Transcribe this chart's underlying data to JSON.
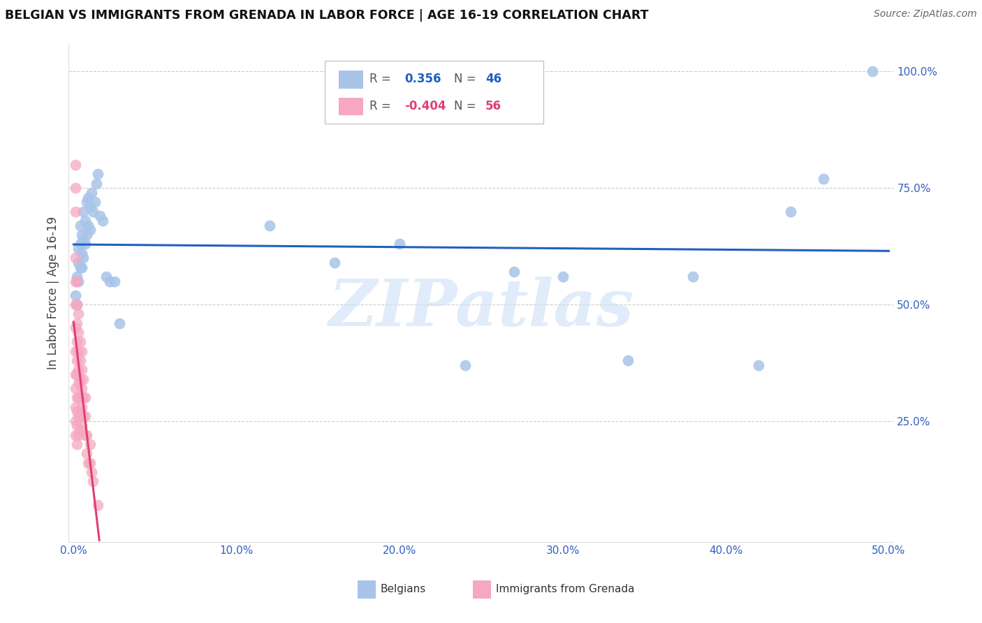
{
  "title": "BELGIAN VS IMMIGRANTS FROM GRENADA IN LABOR FORCE | AGE 16-19 CORRELATION CHART",
  "source": "Source: ZipAtlas.com",
  "ylabel": "In Labor Force | Age 16-19",
  "xlim": [
    0.0,
    0.5
  ],
  "ylim": [
    0.0,
    1.05
  ],
  "belgian_R": 0.356,
  "belgian_N": 46,
  "grenada_R": -0.404,
  "grenada_N": 56,
  "belgian_color": "#a8c4e8",
  "grenada_color": "#f5a8c0",
  "belgian_line_color": "#2060c0",
  "grenada_line_color": "#e04070",
  "belgian_x": [
    0.001,
    0.002,
    0.002,
    0.003,
    0.003,
    0.003,
    0.004,
    0.004,
    0.004,
    0.005,
    0.005,
    0.005,
    0.006,
    0.006,
    0.006,
    0.007,
    0.007,
    0.008,
    0.008,
    0.009,
    0.009,
    0.01,
    0.01,
    0.011,
    0.012,
    0.013,
    0.014,
    0.015,
    0.016,
    0.018,
    0.02,
    0.022,
    0.025,
    0.028,
    0.12,
    0.16,
    0.2,
    0.24,
    0.27,
    0.3,
    0.34,
    0.38,
    0.42,
    0.44,
    0.46,
    0.49
  ],
  "belgian_y": [
    0.52,
    0.5,
    0.56,
    0.55,
    0.59,
    0.62,
    0.58,
    0.63,
    0.67,
    0.58,
    0.61,
    0.65,
    0.6,
    0.64,
    0.7,
    0.63,
    0.68,
    0.65,
    0.72,
    0.67,
    0.73,
    0.66,
    0.71,
    0.74,
    0.7,
    0.72,
    0.76,
    0.78,
    0.69,
    0.68,
    0.56,
    0.55,
    0.55,
    0.46,
    0.67,
    0.59,
    0.63,
    0.37,
    0.57,
    0.56,
    0.38,
    0.56,
    0.37,
    0.7,
    0.77,
    1.0
  ],
  "grenada_x": [
    0.001,
    0.001,
    0.001,
    0.001,
    0.001,
    0.001,
    0.001,
    0.001,
    0.001,
    0.001,
    0.001,
    0.001,
    0.001,
    0.002,
    0.002,
    0.002,
    0.002,
    0.002,
    0.002,
    0.002,
    0.002,
    0.002,
    0.002,
    0.003,
    0.003,
    0.003,
    0.003,
    0.003,
    0.003,
    0.003,
    0.003,
    0.004,
    0.004,
    0.004,
    0.004,
    0.004,
    0.004,
    0.005,
    0.005,
    0.005,
    0.005,
    0.005,
    0.006,
    0.006,
    0.006,
    0.007,
    0.007,
    0.007,
    0.008,
    0.008,
    0.009,
    0.01,
    0.01,
    0.011,
    0.012,
    0.015
  ],
  "grenada_y": [
    0.8,
    0.75,
    0.7,
    0.6,
    0.55,
    0.5,
    0.45,
    0.4,
    0.35,
    0.32,
    0.28,
    0.25,
    0.22,
    0.55,
    0.5,
    0.46,
    0.42,
    0.38,
    0.35,
    0.3,
    0.27,
    0.24,
    0.2,
    0.48,
    0.44,
    0.4,
    0.36,
    0.33,
    0.3,
    0.26,
    0.22,
    0.42,
    0.38,
    0.34,
    0.3,
    0.27,
    0.23,
    0.4,
    0.36,
    0.32,
    0.28,
    0.24,
    0.34,
    0.3,
    0.26,
    0.3,
    0.26,
    0.22,
    0.22,
    0.18,
    0.16,
    0.2,
    0.16,
    0.14,
    0.12,
    0.07
  ],
  "watermark_text": "ZIPatlas",
  "watermark_color": "#cce0f5",
  "watermark_alpha": 0.6
}
